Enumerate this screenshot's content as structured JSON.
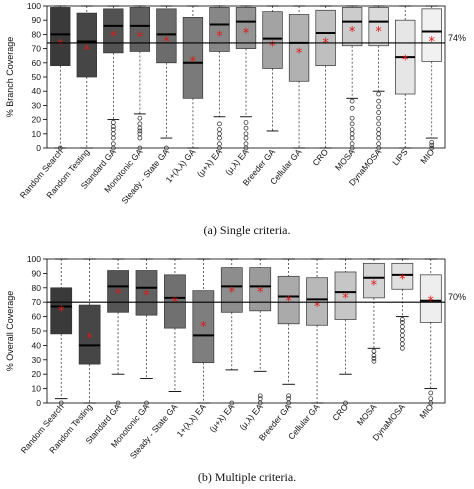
{
  "chart_data": [
    {
      "type": "boxplot",
      "caption": "(a) Single criteria.",
      "ylabel": "% Branch Coverage",
      "ylim": [
        0,
        100
      ],
      "yticks": [
        0,
        10,
        20,
        30,
        40,
        50,
        60,
        70,
        80,
        90,
        100
      ],
      "reference_line": {
        "value": 74,
        "label": "74%"
      },
      "categories": [
        "Random Search",
        "Random Testing",
        "Standard GA",
        "Monotonic GA",
        "Steady - State GA",
        "1+(λ,λ) GA",
        "(μ+λ) EA",
        "(μ,λ) EA",
        "Breeder GA",
        "Cellular GA",
        "CRO",
        "MOSA",
        "DynaMOSA",
        "LIPS",
        "MIO"
      ],
      "colors": [
        "#3a3a3a",
        "#464646",
        "#525252",
        "#5f5f5f",
        "#6c6c6c",
        "#7a7a7a",
        "#878787",
        "#949494",
        "#a3a3a3",
        "#b1b1b1",
        "#bfbfbf",
        "#cccccc",
        "#dadada",
        "#e6e6e6",
        "#f1f1f1"
      ],
      "boxes": [
        {
          "min": 0,
          "q1": 58,
          "median": 80,
          "q3": 99,
          "max": 100,
          "mean": 73,
          "outliers": [
            0
          ]
        },
        {
          "min": 0,
          "q1": 50,
          "median": 75,
          "q3": 95,
          "max": 100,
          "mean": 69,
          "outliers": []
        },
        {
          "min": 20,
          "q1": 67,
          "median": 86,
          "q3": 98,
          "max": 100,
          "mean": 79,
          "outliers": [
            0,
            3,
            7,
            10,
            13,
            15,
            18
          ]
        },
        {
          "min": 24,
          "q1": 68,
          "median": 86,
          "q3": 99,
          "max": 100,
          "mean": 78,
          "outliers": [
            0,
            7,
            10,
            12,
            14,
            17,
            21
          ]
        },
        {
          "min": 7,
          "q1": 60,
          "median": 80,
          "q3": 98,
          "max": 100,
          "mean": 75,
          "outliers": [
            0
          ]
        },
        {
          "min": 0,
          "q1": 35,
          "median": 60,
          "q3": 92,
          "max": 100,
          "mean": 61,
          "outliers": []
        },
        {
          "min": 22,
          "q1": 68,
          "median": 87,
          "q3": 99,
          "max": 100,
          "mean": 79,
          "outliers": [
            0,
            3,
            7,
            10,
            13,
            17
          ]
        },
        {
          "min": 22,
          "q1": 70,
          "median": 89,
          "q3": 99,
          "max": 100,
          "mean": 81,
          "outliers": [
            0,
            3,
            7,
            10,
            14,
            18
          ]
        },
        {
          "min": 12,
          "q1": 56,
          "median": 77,
          "q3": 96,
          "max": 100,
          "mean": 72,
          "outliers": []
        },
        {
          "min": 0,
          "q1": 47,
          "median": 74,
          "q3": 94,
          "max": 100,
          "mean": 67,
          "outliers": []
        },
        {
          "min": 0,
          "q1": 58,
          "median": 81,
          "q3": 97,
          "max": 100,
          "mean": 74,
          "outliers": []
        },
        {
          "min": 35,
          "q1": 72,
          "median": 89,
          "q3": 99,
          "max": 100,
          "mean": 82,
          "outliers": [
            0,
            3,
            7,
            10,
            13,
            17,
            21,
            28,
            33
          ]
        },
        {
          "min": 40,
          "q1": 72,
          "median": 89,
          "q3": 99,
          "max": 100,
          "mean": 82,
          "outliers": [
            0,
            3,
            7,
            10,
            13,
            17,
            21,
            25,
            29,
            33,
            38
          ]
        },
        {
          "min": 0,
          "q1": 38,
          "median": 64,
          "q3": 90,
          "max": 100,
          "mean": 62,
          "outliers": []
        },
        {
          "min": 7,
          "q1": 61,
          "median": 82,
          "q3": 98,
          "max": 100,
          "mean": 75,
          "outliers": [
            0,
            2,
            4
          ]
        }
      ]
    },
    {
      "type": "boxplot",
      "caption": "(b) Multiple criteria.",
      "ylabel": "% Overall Coverage",
      "ylim": [
        0,
        100
      ],
      "yticks": [
        0,
        10,
        20,
        30,
        40,
        50,
        60,
        70,
        80,
        90,
        100
      ],
      "reference_line": {
        "value": 70,
        "label": "70%"
      },
      "categories": [
        "Random Search",
        "Random Testing",
        "Standard GA",
        "Monotonic GA",
        "Steady - State GA",
        "1+(λ,λ) EA",
        "(μ+λ) EA",
        "(μ,λ) EA",
        "Breeder GA",
        "Cellular GA",
        "CRO",
        "MOSA",
        "DynaMOSA",
        "MIO"
      ],
      "colors": [
        "#3a3a3a",
        "#464646",
        "#555555",
        "#626262",
        "#707070",
        "#7e7e7e",
        "#8d8d8d",
        "#9b9b9b",
        "#aaaaaa",
        "#b8b8b8",
        "#c6c6c6",
        "#d3d3d3",
        "#e0e0e0",
        "#eeeeee"
      ],
      "boxes": [
        {
          "min": 3,
          "q1": 48,
          "median": 67,
          "q3": 80,
          "max": 100,
          "mean": 64,
          "outliers": [
            0
          ]
        },
        {
          "min": 0,
          "q1": 27,
          "median": 40,
          "q3": 68,
          "max": 100,
          "mean": 45,
          "outliers": []
        },
        {
          "min": 20,
          "q1": 63,
          "median": 81,
          "q3": 92,
          "max": 100,
          "mean": 76,
          "outliers": [
            0
          ]
        },
        {
          "min": 17,
          "q1": 61,
          "median": 80,
          "q3": 92,
          "max": 100,
          "mean": 75,
          "outliers": [
            0
          ]
        },
        {
          "min": 8,
          "q1": 52,
          "median": 73,
          "q3": 89,
          "max": 100,
          "mean": 70,
          "outliers": []
        },
        {
          "min": 0,
          "q1": 28,
          "median": 47,
          "q3": 78,
          "max": 100,
          "mean": 53,
          "outliers": []
        },
        {
          "min": 23,
          "q1": 63,
          "median": 81,
          "q3": 94,
          "max": 100,
          "mean": 77,
          "outliers": [
            0
          ]
        },
        {
          "min": 22,
          "q1": 64,
          "median": 81,
          "q3": 94,
          "max": 100,
          "mean": 77,
          "outliers": [
            0,
            3,
            5
          ]
        },
        {
          "min": 13,
          "q1": 55,
          "median": 74,
          "q3": 88,
          "max": 100,
          "mean": 71,
          "outliers": [
            0,
            3,
            5
          ]
        },
        {
          "min": 0,
          "q1": 54,
          "median": 72,
          "q3": 87,
          "max": 100,
          "mean": 67,
          "outliers": []
        },
        {
          "min": 20,
          "q1": 58,
          "median": 77,
          "q3": 91,
          "max": 100,
          "mean": 73,
          "outliers": [
            0
          ]
        },
        {
          "min": 38,
          "q1": 73,
          "median": 87,
          "q3": 97,
          "max": 100,
          "mean": 82,
          "outliers": [
            29,
            31,
            33,
            36
          ]
        },
        {
          "min": 60,
          "q1": 79,
          "median": 89,
          "q3": 97,
          "max": 100,
          "mean": 86,
          "outliers": [
            38,
            41,
            44,
            47,
            50,
            53,
            56,
            58
          ]
        },
        {
          "min": 10,
          "q1": 56,
          "median": 71,
          "q3": 89,
          "max": 100,
          "mean": 71,
          "outliers": [
            0,
            3,
            7
          ]
        }
      ]
    }
  ]
}
